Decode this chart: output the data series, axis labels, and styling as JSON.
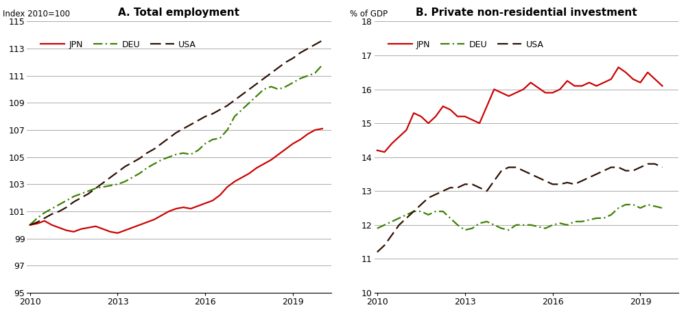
{
  "title_A": "A. Total employment",
  "title_B": "B. Private non-residential investment",
  "ylabel_A": "Index 2010=100",
  "ylabel_B": "% of GDP",
  "ylim_A": [
    95,
    115
  ],
  "ylim_B": [
    10,
    18
  ],
  "yticks_A": [
    95,
    97,
    99,
    101,
    103,
    105,
    107,
    109,
    111,
    113,
    115
  ],
  "yticks_B": [
    10,
    11,
    12,
    13,
    14,
    15,
    16,
    17,
    18
  ],
  "xlim": [
    2009.9,
    2020.3
  ],
  "xticks": [
    2010,
    2013,
    2016,
    2019
  ],
  "legend_labels": [
    "JPN",
    "DEU",
    "USA"
  ],
  "colors": {
    "JPN": "#cc0000",
    "DEU": "#3a8000",
    "USA": "#2d0f02"
  },
  "line_widths": {
    "JPN": 1.6,
    "DEU": 1.6,
    "USA": 1.6
  },
  "emp_JPN_x": [
    2010.0,
    2010.25,
    2010.5,
    2010.75,
    2011.0,
    2011.25,
    2011.5,
    2011.75,
    2012.0,
    2012.25,
    2012.5,
    2012.75,
    2013.0,
    2013.25,
    2013.5,
    2013.75,
    2014.0,
    2014.25,
    2014.5,
    2014.75,
    2015.0,
    2015.25,
    2015.5,
    2015.75,
    2016.0,
    2016.25,
    2016.5,
    2016.75,
    2017.0,
    2017.25,
    2017.5,
    2017.75,
    2018.0,
    2018.25,
    2018.5,
    2018.75,
    2019.0,
    2019.25,
    2019.5,
    2019.75,
    2020.0
  ],
  "emp_JPN_y": [
    100.0,
    100.1,
    100.3,
    100.0,
    99.8,
    99.6,
    99.5,
    99.7,
    99.8,
    99.9,
    99.7,
    99.5,
    99.4,
    99.6,
    99.8,
    100.0,
    100.2,
    100.4,
    100.7,
    101.0,
    101.2,
    101.3,
    101.2,
    101.4,
    101.6,
    101.8,
    102.2,
    102.8,
    103.2,
    103.5,
    103.8,
    104.2,
    104.5,
    104.8,
    105.2,
    105.6,
    106.0,
    106.3,
    106.7,
    107.0,
    107.1
  ],
  "emp_DEU_x": [
    2010.0,
    2010.25,
    2010.5,
    2010.75,
    2011.0,
    2011.25,
    2011.5,
    2011.75,
    2012.0,
    2012.25,
    2012.5,
    2012.75,
    2013.0,
    2013.25,
    2013.5,
    2013.75,
    2014.0,
    2014.25,
    2014.5,
    2014.75,
    2015.0,
    2015.25,
    2015.5,
    2015.75,
    2016.0,
    2016.25,
    2016.5,
    2016.75,
    2017.0,
    2017.25,
    2017.5,
    2017.75,
    2018.0,
    2018.25,
    2018.5,
    2018.75,
    2019.0,
    2019.25,
    2019.5,
    2019.75,
    2020.0
  ],
  "emp_DEU_y": [
    100.0,
    100.5,
    100.9,
    101.2,
    101.5,
    101.8,
    102.1,
    102.3,
    102.5,
    102.7,
    102.8,
    102.9,
    103.0,
    103.2,
    103.5,
    103.8,
    104.2,
    104.5,
    104.8,
    105.0,
    105.2,
    105.3,
    105.2,
    105.5,
    106.0,
    106.3,
    106.4,
    107.0,
    108.0,
    108.5,
    109.0,
    109.5,
    110.0,
    110.2,
    110.0,
    110.2,
    110.5,
    110.8,
    111.0,
    111.2,
    111.8
  ],
  "emp_USA_x": [
    2010.0,
    2010.25,
    2010.5,
    2010.75,
    2011.0,
    2011.25,
    2011.5,
    2011.75,
    2012.0,
    2012.25,
    2012.5,
    2012.75,
    2013.0,
    2013.25,
    2013.5,
    2013.75,
    2014.0,
    2014.25,
    2014.5,
    2014.75,
    2015.0,
    2015.25,
    2015.5,
    2015.75,
    2016.0,
    2016.25,
    2016.5,
    2016.75,
    2017.0,
    2017.25,
    2017.5,
    2017.75,
    2018.0,
    2018.25,
    2018.5,
    2018.75,
    2019.0,
    2019.25,
    2019.5,
    2019.75,
    2020.0
  ],
  "emp_USA_y": [
    100.0,
    100.2,
    100.5,
    100.8,
    101.0,
    101.3,
    101.7,
    102.0,
    102.3,
    102.7,
    103.1,
    103.5,
    103.9,
    104.3,
    104.6,
    104.9,
    105.3,
    105.6,
    106.0,
    106.4,
    106.8,
    107.1,
    107.4,
    107.7,
    108.0,
    108.2,
    108.5,
    108.8,
    109.2,
    109.6,
    110.0,
    110.4,
    110.8,
    111.2,
    111.6,
    112.0,
    112.3,
    112.7,
    113.0,
    113.3,
    113.6
  ],
  "inv_JPN_x": [
    2010.0,
    2010.25,
    2010.5,
    2010.75,
    2011.0,
    2011.25,
    2011.5,
    2011.75,
    2012.0,
    2012.25,
    2012.5,
    2012.75,
    2013.0,
    2013.25,
    2013.5,
    2013.75,
    2014.0,
    2014.25,
    2014.5,
    2014.75,
    2015.0,
    2015.25,
    2015.5,
    2015.75,
    2016.0,
    2016.25,
    2016.5,
    2016.75,
    2017.0,
    2017.25,
    2017.5,
    2017.75,
    2018.0,
    2018.25,
    2018.5,
    2018.75,
    2019.0,
    2019.25,
    2019.5,
    2019.75
  ],
  "inv_JPN_y": [
    14.2,
    14.15,
    14.4,
    14.6,
    14.8,
    15.3,
    15.2,
    15.0,
    15.2,
    15.5,
    15.4,
    15.2,
    15.2,
    15.1,
    15.0,
    15.5,
    16.0,
    15.9,
    15.8,
    15.9,
    16.0,
    16.2,
    16.05,
    15.9,
    15.9,
    16.0,
    16.25,
    16.1,
    16.1,
    16.2,
    16.1,
    16.2,
    16.3,
    16.65,
    16.5,
    16.3,
    16.2,
    16.5,
    16.3,
    16.1
  ],
  "inv_DEU_x": [
    2010.0,
    2010.25,
    2010.5,
    2010.75,
    2011.0,
    2011.25,
    2011.5,
    2011.75,
    2012.0,
    2012.25,
    2012.5,
    2012.75,
    2013.0,
    2013.25,
    2013.5,
    2013.75,
    2014.0,
    2014.25,
    2014.5,
    2014.75,
    2015.0,
    2015.25,
    2015.5,
    2015.75,
    2016.0,
    2016.25,
    2016.5,
    2016.75,
    2017.0,
    2017.25,
    2017.5,
    2017.75,
    2018.0,
    2018.25,
    2018.5,
    2018.75,
    2019.0,
    2019.25,
    2019.5,
    2019.75
  ],
  "inv_DEU_y": [
    11.9,
    12.0,
    12.1,
    12.2,
    12.3,
    12.4,
    12.4,
    12.3,
    12.4,
    12.4,
    12.2,
    12.0,
    11.85,
    11.9,
    12.05,
    12.1,
    12.0,
    11.9,
    11.85,
    12.0,
    12.0,
    12.0,
    11.95,
    11.9,
    12.0,
    12.05,
    12.0,
    12.1,
    12.1,
    12.15,
    12.2,
    12.2,
    12.3,
    12.5,
    12.6,
    12.6,
    12.5,
    12.6,
    12.55,
    12.5
  ],
  "inv_USA_x": [
    2010.0,
    2010.25,
    2010.5,
    2010.75,
    2011.0,
    2011.25,
    2011.5,
    2011.75,
    2012.0,
    2012.25,
    2012.5,
    2012.75,
    2013.0,
    2013.25,
    2013.5,
    2013.75,
    2014.0,
    2014.25,
    2014.5,
    2014.75,
    2015.0,
    2015.25,
    2015.5,
    2015.75,
    2016.0,
    2016.25,
    2016.5,
    2016.75,
    2017.0,
    2017.25,
    2017.5,
    2017.75,
    2018.0,
    2018.25,
    2018.5,
    2018.75,
    2019.0,
    2019.25,
    2019.5,
    2019.75
  ],
  "inv_USA_y": [
    11.2,
    11.4,
    11.7,
    12.0,
    12.2,
    12.4,
    12.6,
    12.8,
    12.9,
    13.0,
    13.1,
    13.1,
    13.2,
    13.2,
    13.1,
    13.0,
    13.3,
    13.6,
    13.7,
    13.7,
    13.6,
    13.5,
    13.4,
    13.3,
    13.2,
    13.2,
    13.25,
    13.2,
    13.3,
    13.4,
    13.5,
    13.6,
    13.7,
    13.7,
    13.6,
    13.6,
    13.7,
    13.8,
    13.8,
    13.7
  ],
  "background_color": "#ffffff",
  "grid_color": "#aaaaaa",
  "title_fontsize": 11,
  "label_fontsize": 8.5,
  "tick_fontsize": 9,
  "legend_fontsize": 9
}
